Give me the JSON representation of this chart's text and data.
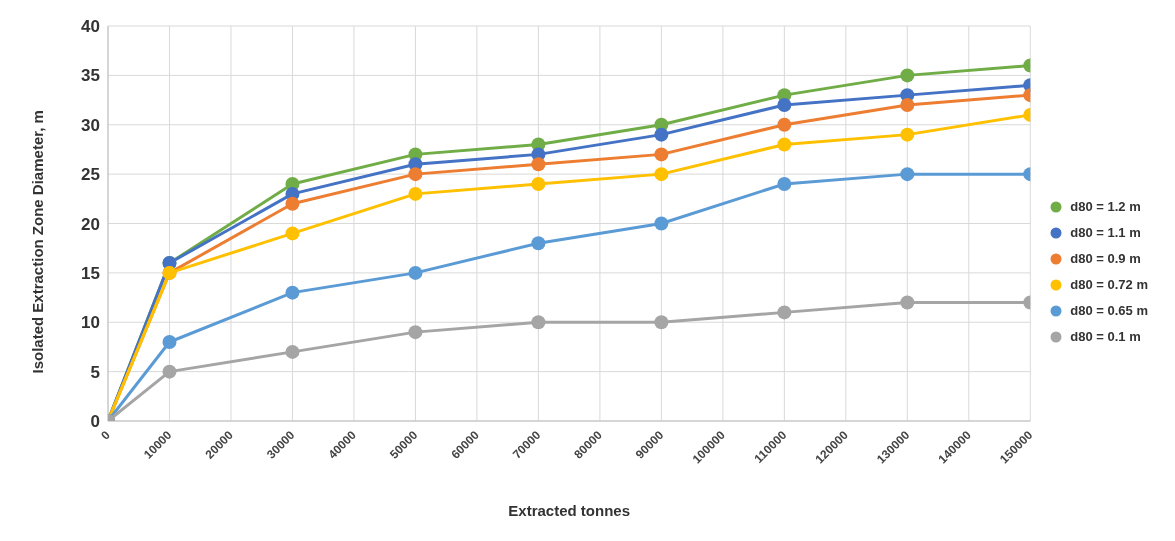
{
  "chart_data": {
    "type": "line",
    "xlabel": "Extracted tonnes",
    "ylabel": "Isolated Extraction Zone Diameter, m",
    "x": [
      0,
      10000,
      30000,
      50000,
      70000,
      90000,
      110000,
      130000,
      150000
    ],
    "series": [
      {
        "name": "d80 = 1.2 m",
        "color": "#70ad47",
        "values": [
          0,
          16,
          24,
          27,
          28,
          30,
          33,
          35,
          36
        ]
      },
      {
        "name": "d80 = 1.1 m",
        "color": "#4472c4",
        "values": [
          0,
          16,
          23,
          26,
          27,
          29,
          32,
          33,
          34
        ]
      },
      {
        "name": "d80 = 0.9 m",
        "color": "#ed7d31",
        "values": [
          0,
          15,
          22,
          25,
          26,
          27,
          30,
          32,
          33
        ]
      },
      {
        "name": "d80 = 0.72 m",
        "color": "#ffc000",
        "values": [
          0,
          15,
          19,
          23,
          24,
          25,
          28,
          29,
          31
        ]
      },
      {
        "name": "d80 = 0.65 m",
        "color": "#5b9bd5",
        "values": [
          0,
          8,
          13,
          15,
          18,
          20,
          24,
          25,
          25
        ]
      },
      {
        "name": "d80 = 0.1 m",
        "color": "#a5a5a5",
        "values": [
          0,
          5,
          7,
          9,
          10,
          10,
          11,
          12,
          12
        ]
      }
    ],
    "xlim": [
      0,
      150000
    ],
    "xticks": [
      0,
      10000,
      20000,
      30000,
      40000,
      50000,
      60000,
      70000,
      80000,
      90000,
      100000,
      110000,
      120000,
      130000,
      140000,
      150000
    ],
    "ylim": [
      0,
      40
    ],
    "yticks": [
      0,
      5,
      10,
      15,
      20,
      25,
      30,
      35,
      40
    ],
    "grid": true,
    "legend": "right",
    "marker": "circle",
    "line_style": "solid"
  }
}
